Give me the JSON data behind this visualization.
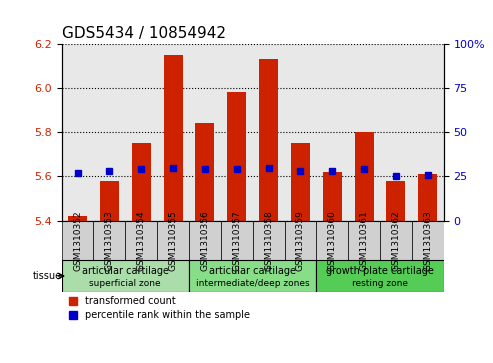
{
  "title": "GDS5434 / 10854942",
  "samples": [
    "GSM1310352",
    "GSM1310353",
    "GSM1310354",
    "GSM1310355",
    "GSM1310356",
    "GSM1310357",
    "GSM1310358",
    "GSM1310359",
    "GSM1310360",
    "GSM1310361",
    "GSM1310362",
    "GSM1310363"
  ],
  "bar_values": [
    5.42,
    5.58,
    5.75,
    6.15,
    5.84,
    5.98,
    6.13,
    5.75,
    5.62,
    5.8,
    5.58,
    5.61
  ],
  "percentile_values": [
    27,
    28,
    29,
    30,
    29,
    29,
    30,
    28,
    28,
    29,
    25,
    26
  ],
  "bar_base": 5.4,
  "ylim_left": [
    5.4,
    6.2
  ],
  "ylim_right": [
    0,
    100
  ],
  "yticks_left": [
    5.4,
    5.6,
    5.8,
    6.0,
    6.2
  ],
  "yticks_right": [
    0,
    25,
    50,
    75,
    100
  ],
  "ytick_labels_right": [
    "0",
    "25",
    "50",
    "75",
    "100%"
  ],
  "bar_color": "#cc2200",
  "dot_color": "#0000cc",
  "background_plot": "#ffffff",
  "grid_color": "#000000",
  "tick_color_left": "#cc2200",
  "tick_color_right": "#0000cc",
  "tissue_groups": [
    {
      "label": "articular cartilage\nsuperficial zone",
      "start": 0,
      "end": 4,
      "color": "#aaddaa"
    },
    {
      "label": "articular cartilage\nintermediate/deep zones",
      "start": 4,
      "end": 8,
      "color": "#88dd88"
    },
    {
      "label": "growth plate cartilage\nresting zone",
      "start": 8,
      "end": 12,
      "color": "#55cc55"
    }
  ],
  "tissue_label": "tissue",
  "legend_bar_label": "transformed count",
  "legend_dot_label": "percentile rank within the sample",
  "bar_width": 0.6,
  "xticklabel_fontsize": 7,
  "title_fontsize": 11,
  "ytick_fontsize": 8,
  "tissue_fontsize": 7
}
